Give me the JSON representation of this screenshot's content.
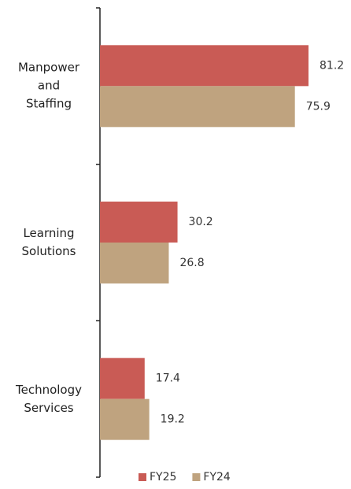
{
  "chart_data": {
    "type": "hbar",
    "categories": [
      "Manpower\nand\nStaffing",
      "Learning\nSolutions",
      "Technology\nServices"
    ],
    "series": [
      {
        "name": "FY25",
        "color": "#c95b55",
        "values": [
          81.2,
          30.2,
          17.4
        ]
      },
      {
        "name": "FY24",
        "color": "#bfa37f",
        "values": [
          75.9,
          26.8,
          19.2
        ]
      }
    ],
    "legend": "bottom"
  }
}
